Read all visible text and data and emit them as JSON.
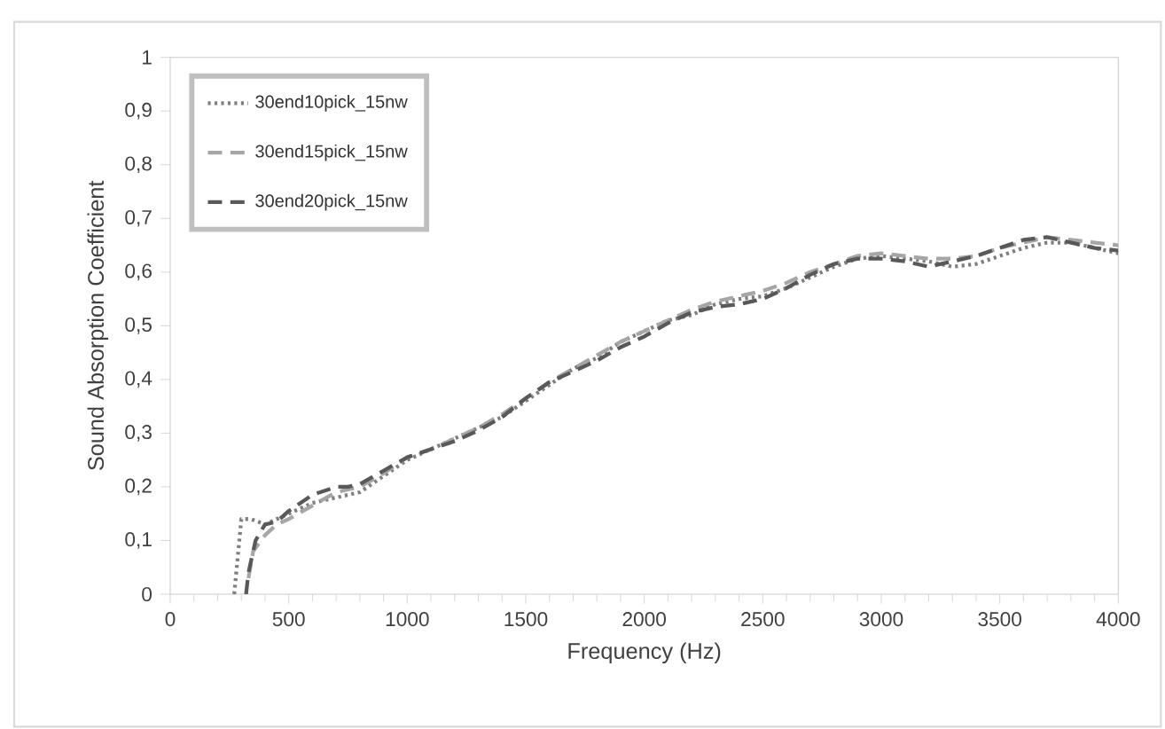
{
  "chart_data": {
    "type": "line",
    "xlabel": "Frequency (Hz)",
    "ylabel": "Sound Absorption Coefficient",
    "xlim": [
      0,
      4000
    ],
    "xticks": [
      0,
      500,
      1000,
      1500,
      2000,
      2500,
      3000,
      3500,
      4000
    ],
    "ylim": [
      0,
      1
    ],
    "yticks": [
      0,
      {
        "value": 0.1,
        "label": "0,1"
      },
      {
        "value": 0.2,
        "label": "0,2"
      },
      {
        "value": 0.3,
        "label": "0,3"
      },
      {
        "value": 0.4,
        "label": "0,4"
      },
      {
        "value": 0.5,
        "label": "0,5"
      },
      {
        "value": 0.6,
        "label": "0,6"
      },
      {
        "value": 0.7,
        "label": "0,7"
      },
      {
        "value": 0.8,
        "label": "0,8"
      },
      {
        "value": 0.9,
        "label": "0,9"
      },
      1
    ],
    "grid": false,
    "legend": "top left",
    "marker": "none",
    "series": [
      {
        "name": "30end10pick_15nw",
        "color": "#7f7f7f",
        "line_style": "dotted",
        "x": [
          270,
          300,
          340,
          400,
          500,
          600,
          700,
          800,
          900,
          1000,
          1100,
          1200,
          1300,
          1400,
          1500,
          1600,
          1700,
          1800,
          1900,
          2000,
          2100,
          2200,
          2300,
          2400,
          2500,
          2600,
          2700,
          2800,
          2900,
          3000,
          3100,
          3200,
          3300,
          3400,
          3500,
          3600,
          3700,
          3800,
          3900,
          4000
        ],
        "values": [
          0,
          0.14,
          0.14,
          0.13,
          0.15,
          0.17,
          0.18,
          0.19,
          0.22,
          0.25,
          0.27,
          0.29,
          0.31,
          0.33,
          0.36,
          0.39,
          0.42,
          0.44,
          0.47,
          0.49,
          0.51,
          0.52,
          0.54,
          0.55,
          0.555,
          0.57,
          0.59,
          0.61,
          0.625,
          0.63,
          0.625,
          0.62,
          0.61,
          0.615,
          0.63,
          0.645,
          0.655,
          0.655,
          0.645,
          0.635
        ]
      },
      {
        "name": "30end15pick_15nw",
        "color": "#a6a6a6",
        "line_style": "dashed",
        "x": [
          330,
          350,
          400,
          450,
          500,
          600,
          700,
          800,
          900,
          1000,
          1100,
          1200,
          1300,
          1400,
          1500,
          1600,
          1700,
          1800,
          1900,
          2000,
          2100,
          2200,
          2300,
          2400,
          2500,
          2600,
          2700,
          2800,
          2900,
          3000,
          3100,
          3200,
          3300,
          3400,
          3500,
          3600,
          3700,
          3800,
          3900,
          4000
        ],
        "values": [
          0.03,
          0.08,
          0.11,
          0.13,
          0.14,
          0.165,
          0.19,
          0.2,
          0.225,
          0.255,
          0.27,
          0.29,
          0.31,
          0.335,
          0.365,
          0.395,
          0.42,
          0.445,
          0.47,
          0.49,
          0.51,
          0.53,
          0.545,
          0.555,
          0.565,
          0.58,
          0.6,
          0.615,
          0.63,
          0.635,
          0.63,
          0.625,
          0.625,
          0.63,
          0.645,
          0.655,
          0.665,
          0.66,
          0.655,
          0.65
        ]
      },
      {
        "name": "30end20pick_15nw",
        "color": "#595959",
        "line_style": "dashed",
        "x": [
          320,
          330,
          360,
          400,
          450,
          500,
          600,
          700,
          750,
          800,
          900,
          1000,
          1100,
          1200,
          1300,
          1400,
          1500,
          1600,
          1700,
          1800,
          1900,
          2000,
          2100,
          2200,
          2300,
          2400,
          2500,
          2600,
          2700,
          2800,
          2900,
          3000,
          3100,
          3200,
          3300,
          3400,
          3500,
          3600,
          3700,
          3800,
          3900,
          4000
        ],
        "values": [
          0,
          0.04,
          0.1,
          0.13,
          0.135,
          0.155,
          0.185,
          0.2,
          0.2,
          0.205,
          0.23,
          0.255,
          0.27,
          0.285,
          0.305,
          0.33,
          0.365,
          0.395,
          0.415,
          0.435,
          0.46,
          0.48,
          0.505,
          0.525,
          0.535,
          0.54,
          0.55,
          0.57,
          0.595,
          0.615,
          0.625,
          0.625,
          0.62,
          0.61,
          0.62,
          0.63,
          0.645,
          0.66,
          0.665,
          0.655,
          0.645,
          0.64
        ]
      }
    ]
  }
}
